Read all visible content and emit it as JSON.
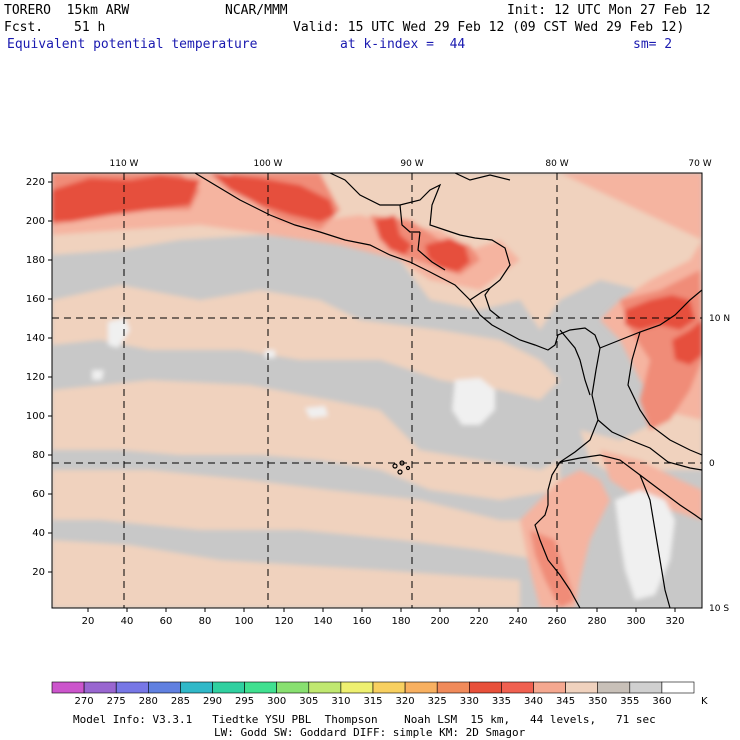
{
  "header": {
    "model": "TORERO  15km ARW",
    "center": "NCAR/MMM",
    "init": "Init: 12 UTC Mon 27 Feb 12",
    "fcst_label": "Fcst.",
    "fcst_value": "51 h",
    "valid": "Valid: 15 UTC Wed 29 Feb 12 (09 CST Wed 29 Feb 12)",
    "field": "Equivalent potential temperature",
    "level": "at k-index =  44",
    "smooth": "sm= 2"
  },
  "map": {
    "top_lon_labels": [
      "110 W",
      "100 W",
      "90 W",
      "80 W",
      "70 W"
    ],
    "right_lat_labels": [
      "10 N",
      "0",
      "10 S"
    ],
    "left_grid_labels": [
      "220",
      "200",
      "180",
      "160",
      "140",
      "120",
      "100",
      "80",
      "60",
      "40",
      "20"
    ],
    "bottom_grid_labels": [
      "20",
      "40",
      "60",
      "80",
      "100",
      "120",
      "140",
      "160",
      "180",
      "200",
      "220",
      "240",
      "260",
      "280",
      "300",
      "320"
    ],
    "colors": {
      "background": "#c8c8c8",
      "pale_peach": "#f0d2be",
      "light_salmon": "#f5b4a0",
      "salmon": "#f08c78",
      "red": "#e6503c",
      "white": "#f0f0f0"
    }
  },
  "colorbar": {
    "ticks": [
      "270",
      "275",
      "280",
      "285",
      "290",
      "295",
      "300",
      "305",
      "310",
      "315",
      "320",
      "325",
      "330",
      "335",
      "340",
      "345",
      "350",
      "355",
      "360"
    ],
    "unit": "K",
    "colors": [
      "#cc55cc",
      "#9966d0",
      "#7777e6",
      "#6080e0",
      "#30b8c8",
      "#30d0a0",
      "#40e090",
      "#88e070",
      "#c0e870",
      "#eef070",
      "#f8d060",
      "#f8b060",
      "#f08a5a",
      "#e8503a",
      "#f06050",
      "#f5a890",
      "#f0d2be",
      "#c8c0b8",
      "#d0d0d0",
      "#ffffff"
    ]
  },
  "footer": {
    "line1": "Model Info: V3.3.1   Tiedtke YSU PBL  Thompson    Noah LSM  15 km,   44 levels,   71 sec",
    "line2": "LW: Godd SW: Goddard DIFF: simple KM: 2D Smagor"
  }
}
